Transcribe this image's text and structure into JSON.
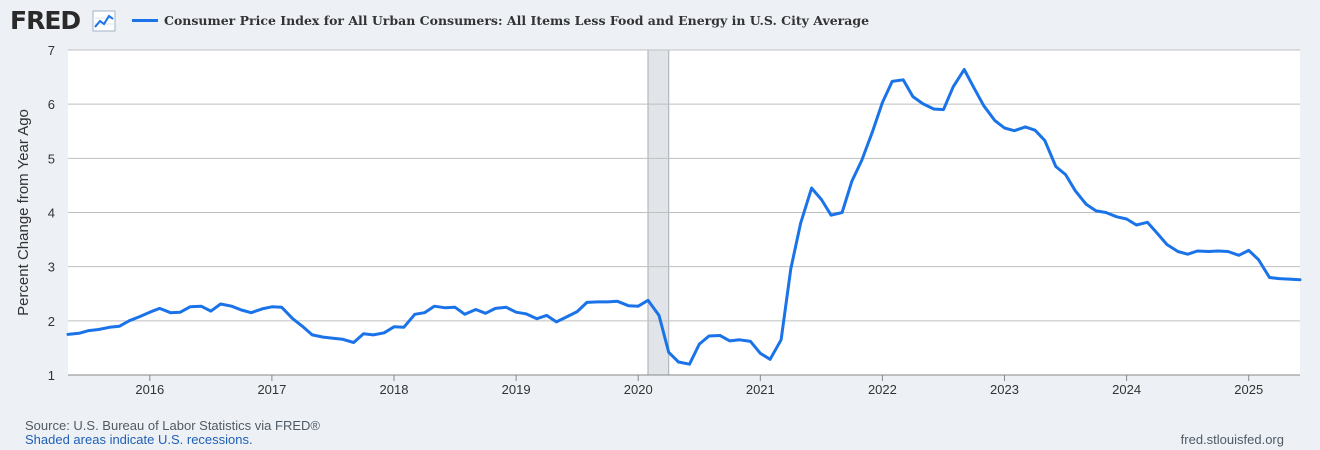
{
  "header": {
    "logo_text": "FRED",
    "logo_icon": "line-chart-icon",
    "series_title": "Consumer Price Index for All Urban Consumers: All Items Less Food and Energy in U.S. City Average"
  },
  "footer": {
    "source": "Source: U.S. Bureau of Labor Statistics via FRED®",
    "recession_note": "Shaded areas indicate U.S. recessions.",
    "site": "fred.stlouisfed.org"
  },
  "colors": {
    "series": "#1a73e8",
    "plot_background": "#ffffff",
    "page_background": "#edf1f6",
    "grid": "#bfbfbf",
    "recession_shade": "#e1e4e8"
  },
  "chart_data": {
    "type": "line",
    "title": "",
    "ylabel": "Percent Change from Year Ago",
    "xlabel": "",
    "xlim": [
      2015.33,
      2025.42
    ],
    "ylim": [
      1,
      7
    ],
    "yticks": [
      1,
      2,
      3,
      4,
      5,
      6,
      7
    ],
    "xticks": [
      "2016",
      "2017",
      "2018",
      "2019",
      "2020",
      "2021",
      "2022",
      "2023",
      "2024",
      "2025"
    ],
    "grid": true,
    "legend": "top-left",
    "recessions": [
      {
        "start": 2020.08,
        "end": 2020.25
      }
    ],
    "series": [
      {
        "name": "Consumer Price Index for All Urban Consumers: All Items Less Food and Energy in U.S. City Average",
        "x": [
          2015.33,
          2015.42,
          2015.5,
          2015.58,
          2015.67,
          2015.75,
          2015.83,
          2015.92,
          2016.0,
          2016.08,
          2016.17,
          2016.25,
          2016.33,
          2016.42,
          2016.5,
          2016.58,
          2016.67,
          2016.75,
          2016.83,
          2016.92,
          2017.0,
          2017.08,
          2017.17,
          2017.25,
          2017.33,
          2017.42,
          2017.5,
          2017.58,
          2017.67,
          2017.75,
          2017.83,
          2017.92,
          2018.0,
          2018.08,
          2018.17,
          2018.25,
          2018.33,
          2018.42,
          2018.5,
          2018.58,
          2018.67,
          2018.75,
          2018.83,
          2018.92,
          2019.0,
          2019.08,
          2019.17,
          2019.25,
          2019.33,
          2019.42,
          2019.5,
          2019.58,
          2019.67,
          2019.75,
          2019.83,
          2019.92,
          2020.0,
          2020.08,
          2020.17,
          2020.25,
          2020.33,
          2020.42,
          2020.5,
          2020.58,
          2020.67,
          2020.75,
          2020.83,
          2020.92,
          2021.0,
          2021.08,
          2021.17,
          2021.25,
          2021.33,
          2021.42,
          2021.5,
          2021.58,
          2021.67,
          2021.75,
          2021.83,
          2021.92,
          2022.0,
          2022.08,
          2022.17,
          2022.25,
          2022.33,
          2022.42,
          2022.5,
          2022.58,
          2022.67,
          2022.75,
          2022.83,
          2022.92,
          2023.0,
          2023.08,
          2023.17,
          2023.25,
          2023.33,
          2023.42,
          2023.5,
          2023.58,
          2023.67,
          2023.75,
          2023.83,
          2023.92,
          2024.0,
          2024.08,
          2024.17,
          2024.25,
          2024.33,
          2024.42,
          2024.5,
          2024.58,
          2024.67,
          2024.75,
          2024.83,
          2024.92,
          2025.0,
          2025.08,
          2025.17,
          2025.25,
          2025.33,
          2025.42
        ],
        "values": [
          1.75,
          1.77,
          1.82,
          1.84,
          1.88,
          1.9,
          2.0,
          2.08,
          2.16,
          2.23,
          2.15,
          2.16,
          2.26,
          2.27,
          2.18,
          2.31,
          2.27,
          2.2,
          2.15,
          2.22,
          2.26,
          2.25,
          2.04,
          1.9,
          1.74,
          1.7,
          1.68,
          1.66,
          1.6,
          1.76,
          1.74,
          1.78,
          1.89,
          1.88,
          2.12,
          2.15,
          2.27,
          2.24,
          2.25,
          2.12,
          2.21,
          2.14,
          2.23,
          2.25,
          2.16,
          2.13,
          2.04,
          2.1,
          1.98,
          2.08,
          2.17,
          2.34,
          2.35,
          2.35,
          2.36,
          2.28,
          2.27,
          2.38,
          2.1,
          1.42,
          1.24,
          1.2,
          1.57,
          1.72,
          1.73,
          1.63,
          1.65,
          1.62,
          1.4,
          1.29,
          1.65,
          2.96,
          3.8,
          4.45,
          4.24,
          3.95,
          4.0,
          4.58,
          4.96,
          5.5,
          6.03,
          6.42,
          6.45,
          6.14,
          6.01,
          5.91,
          5.9,
          6.32,
          6.64,
          6.3,
          5.97,
          5.7,
          5.56,
          5.51,
          5.58,
          5.52,
          5.33,
          4.85,
          4.7,
          4.4,
          4.15,
          4.03,
          4.0,
          3.92,
          3.88,
          3.77,
          3.82,
          3.62,
          3.41,
          3.28,
          3.23,
          3.29,
          3.28,
          3.29,
          3.28,
          3.21,
          3.3,
          3.13,
          2.8,
          2.78,
          2.77,
          2.76
        ]
      }
    ]
  }
}
